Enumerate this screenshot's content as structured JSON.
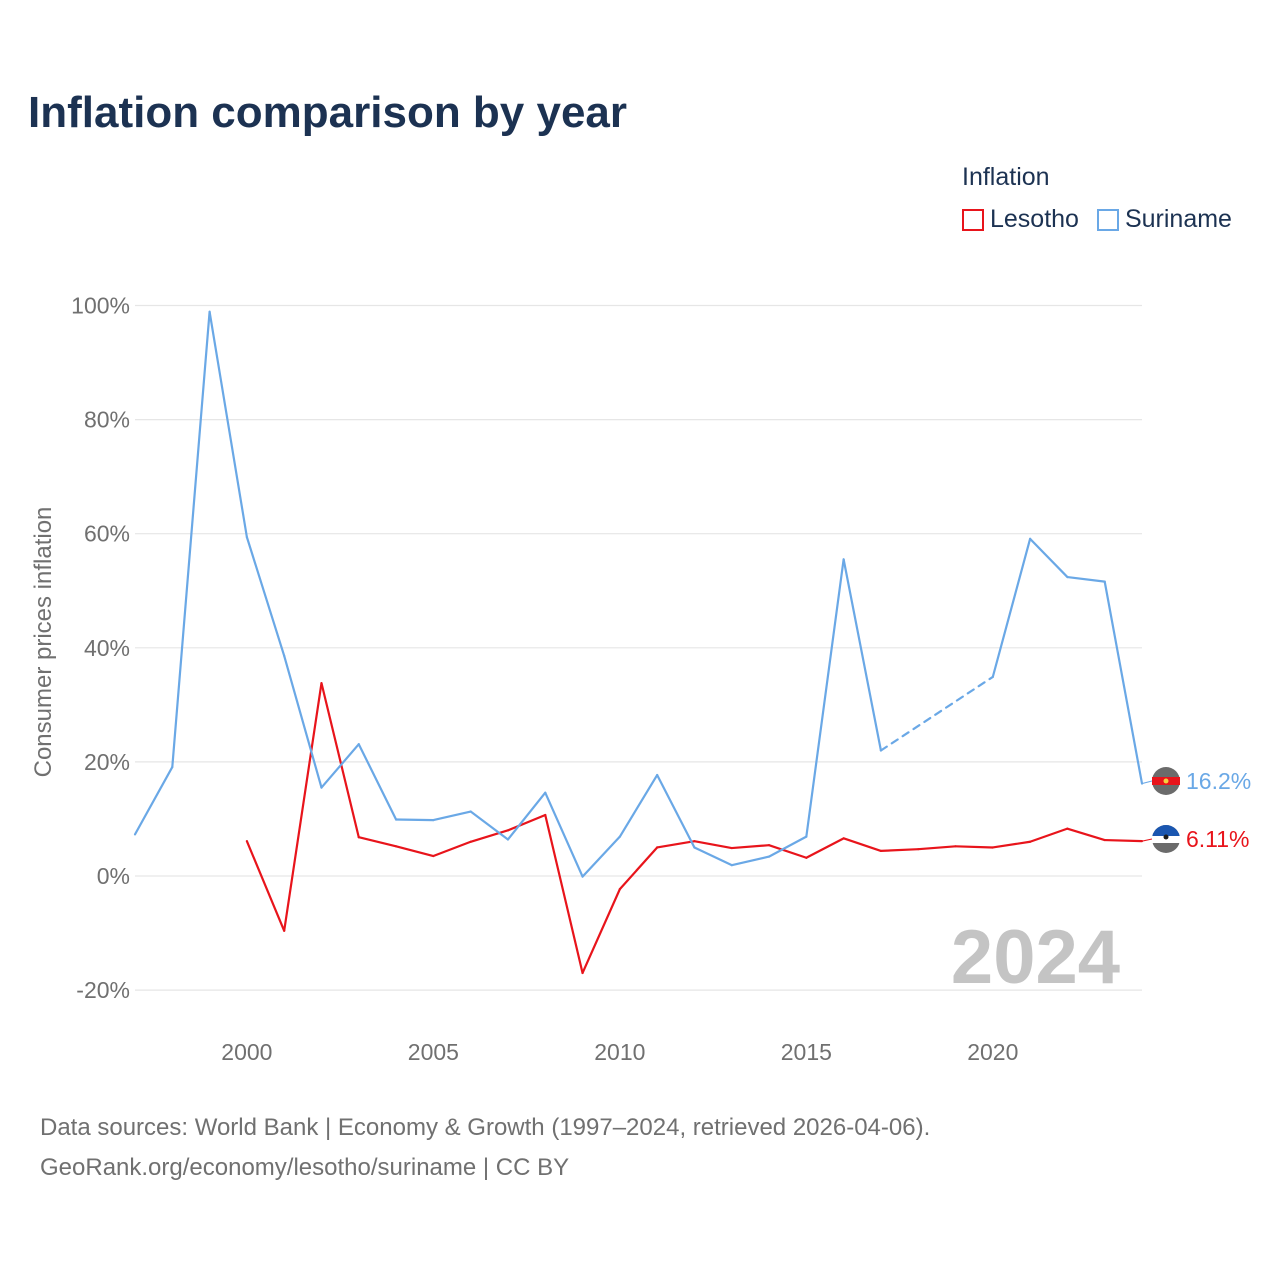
{
  "page": {
    "title": "Inflation comparison by year",
    "footer_line1": "Data sources: World Bank | Economy & Growth (1997–2024, retrieved 2026-04-06).",
    "footer_line2": "GeoRank.org/economy/lesotho/suriname | CC BY"
  },
  "legend": {
    "title": "Inflation",
    "items": [
      {
        "label": "Lesotho",
        "color": "#e8141b"
      },
      {
        "label": "Suriname",
        "color": "#6aa8e6"
      }
    ]
  },
  "chart_data": {
    "type": "line",
    "title": "Inflation comparison by year",
    "ylabel": "Consumer prices inflation",
    "xlabel": "",
    "xlim": [
      1997,
      2024
    ],
    "ylim": [
      -25,
      105
    ],
    "yticks": [
      -20,
      0,
      20,
      40,
      60,
      80,
      100
    ],
    "ytick_labels": [
      "-20%",
      "0%",
      "20%",
      "40%",
      "60%",
      "80%",
      "100%"
    ],
    "xticks": [
      2000,
      2005,
      2010,
      2015,
      2020
    ],
    "xtick_labels": [
      "2000",
      "2005",
      "2010",
      "2015",
      "2020"
    ],
    "year_label": "2024",
    "grid": true,
    "series": [
      {
        "name": "Lesotho",
        "color": "#e8141b",
        "end_label": "6.11%",
        "x": [
          2000,
          2001,
          2002,
          2003,
          2004,
          2005,
          2006,
          2007,
          2008,
          2009,
          2010,
          2011,
          2012,
          2013,
          2014,
          2015,
          2016,
          2017,
          2018,
          2019,
          2020,
          2021,
          2022,
          2023,
          2024
        ],
        "values": [
          6.1,
          -9.6,
          33.8,
          6.8,
          5.2,
          3.5,
          6.0,
          8.0,
          10.7,
          -17.0,
          -2.3,
          5.0,
          6.1,
          4.9,
          5.4,
          3.2,
          6.6,
          4.4,
          4.7,
          5.2,
          5.0,
          6.0,
          8.3,
          6.3,
          6.11
        ],
        "dashed_segments": []
      },
      {
        "name": "Suriname",
        "color": "#6aa8e6",
        "end_label": "16.2%",
        "x": [
          1997,
          1998,
          1999,
          2000,
          2001,
          2002,
          2003,
          2004,
          2005,
          2006,
          2007,
          2008,
          2009,
          2010,
          2011,
          2012,
          2013,
          2014,
          2015,
          2016,
          2017,
          2020,
          2021,
          2022,
          2023,
          2024
        ],
        "values": [
          7.3,
          19.1,
          98.9,
          59.4,
          38.6,
          15.5,
          23.1,
          9.9,
          9.8,
          11.3,
          6.4,
          14.6,
          -0.1,
          6.9,
          17.7,
          5.0,
          1.9,
          3.4,
          6.9,
          55.5,
          22.0,
          34.9,
          59.1,
          52.4,
          51.6,
          16.2
        ],
        "dashed_segments": [
          [
            2017,
            2020
          ]
        ]
      }
    ]
  }
}
